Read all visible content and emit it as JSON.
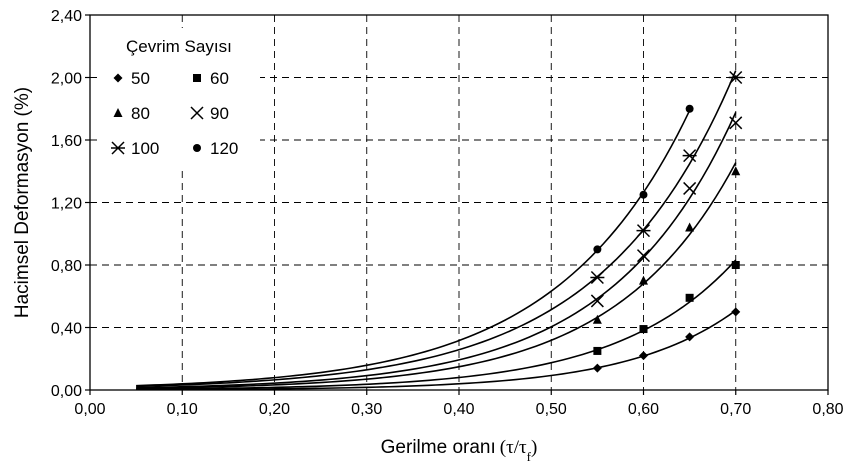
{
  "chart_data": {
    "type": "scatter",
    "title": "",
    "xlabel": "Gerilme oranı",
    "xlabel_symbol": "(τ/τ",
    "xlabel_sub": "f",
    "xlabel_close": ")",
    "ylabel": "Hacimsel Deformasyon (%)",
    "xlim": [
      0,
      0.8
    ],
    "ylim": [
      0,
      2.4
    ],
    "x_ticks": [
      "0,00",
      "0,10",
      "0,20",
      "0,30",
      "0,40",
      "0,50",
      "0,60",
      "0,70",
      "0,80"
    ],
    "y_ticks": [
      "0,00",
      "0,40",
      "0,80",
      "1,20",
      "1,60",
      "2,00",
      "2,40"
    ],
    "grid": true,
    "legend_title": "Çevrim Sayısı",
    "legend_position": "top-left",
    "series": [
      {
        "name": "50",
        "marker": "diamond",
        "x": [
          0.55,
          0.6,
          0.65,
          0.7
        ],
        "y": [
          0.14,
          0.22,
          0.34,
          0.5
        ]
      },
      {
        "name": "60",
        "marker": "square",
        "x": [
          0.55,
          0.6,
          0.65,
          0.7
        ],
        "y": [
          0.25,
          0.39,
          0.59,
          0.8
        ]
      },
      {
        "name": "80",
        "marker": "triangle",
        "x": [
          0.55,
          0.6,
          0.65,
          0.7
        ],
        "y": [
          0.45,
          0.7,
          1.04,
          1.4
        ]
      },
      {
        "name": "90",
        "marker": "x",
        "x": [
          0.55,
          0.6,
          0.65,
          0.7
        ],
        "y": [
          0.57,
          0.86,
          1.29,
          1.71
        ]
      },
      {
        "name": "100",
        "marker": "star",
        "x": [
          0.55,
          0.6,
          0.65,
          0.7
        ],
        "y": [
          0.72,
          1.02,
          1.5,
          2.0
        ]
      },
      {
        "name": "120",
        "marker": "circle",
        "x": [
          0.55,
          0.6,
          0.65
        ],
        "y": [
          0.9,
          1.25,
          1.8
        ]
      }
    ]
  }
}
